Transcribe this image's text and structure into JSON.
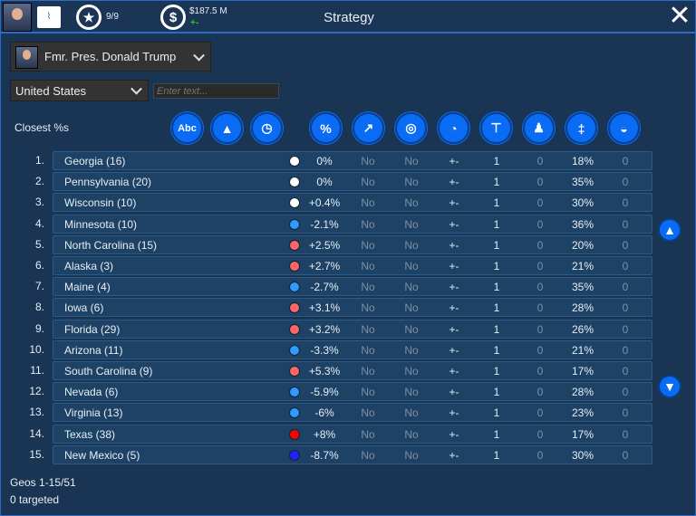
{
  "header": {
    "title": "Strategy",
    "endorsements": "9/9",
    "funds": "$187.5 M",
    "funds_change": "+-"
  },
  "candidate_select": {
    "value": "Fmr. Pres. Donald Trump"
  },
  "region_select": {
    "value": "United States"
  },
  "search": {
    "placeholder": "Enter text..."
  },
  "sort_label": "Closest %s",
  "column_icons": [
    "abc-icon",
    "gold-bars-icon",
    "clock-icon",
    "percent-icon",
    "trend-chart-icon",
    "target-icon",
    "speedometer-icon",
    "org-chart-icon",
    "people-icon",
    "signpost-icon",
    "satellite-dish-icon"
  ],
  "rows": [
    {
      "rank": "1.",
      "name": "Georgia (16)",
      "dot": "#ffffff",
      "margin": "0%",
      "c1": "No",
      "c2": "No",
      "c3": "+-",
      "c4": "1",
      "c5": "0",
      "c6": "18%",
      "c7": "0"
    },
    {
      "rank": "2.",
      "name": "Pennsylvania (20)",
      "dot": "#ffffff",
      "margin": "0%",
      "c1": "No",
      "c2": "No",
      "c3": "+-",
      "c4": "1",
      "c5": "0",
      "c6": "35%",
      "c7": "0"
    },
    {
      "rank": "3.",
      "name": "Wisconsin (10)",
      "dot": "#ffffff",
      "margin": "+0.4%",
      "c1": "No",
      "c2": "No",
      "c3": "+-",
      "c4": "1",
      "c5": "0",
      "c6": "30%",
      "c7": "0"
    },
    {
      "rank": "4.",
      "name": "Minnesota (10)",
      "dot": "#3399ff",
      "margin": "-2.1%",
      "c1": "No",
      "c2": "No",
      "c3": "+-",
      "c4": "1",
      "c5": "0",
      "c6": "36%",
      "c7": "0"
    },
    {
      "rank": "5.",
      "name": "North Carolina (15)",
      "dot": "#ff6666",
      "margin": "+2.5%",
      "c1": "No",
      "c2": "No",
      "c3": "+-",
      "c4": "1",
      "c5": "0",
      "c6": "20%",
      "c7": "0"
    },
    {
      "rank": "6.",
      "name": "Alaska (3)",
      "dot": "#ff6666",
      "margin": "+2.7%",
      "c1": "No",
      "c2": "No",
      "c3": "+-",
      "c4": "1",
      "c5": "0",
      "c6": "21%",
      "c7": "0"
    },
    {
      "rank": "7.",
      "name": "Maine (4)",
      "dot": "#3399ff",
      "margin": "-2.7%",
      "c1": "No",
      "c2": "No",
      "c3": "+-",
      "c4": "1",
      "c5": "0",
      "c6": "35%",
      "c7": "0"
    },
    {
      "rank": "8.",
      "name": "Iowa (6)",
      "dot": "#ff6666",
      "margin": "+3.1%",
      "c1": "No",
      "c2": "No",
      "c3": "+-",
      "c4": "1",
      "c5": "0",
      "c6": "28%",
      "c7": "0"
    },
    {
      "rank": "9.",
      "name": "Florida (29)",
      "dot": "#ff6666",
      "margin": "+3.2%",
      "c1": "No",
      "c2": "No",
      "c3": "+-",
      "c4": "1",
      "c5": "0",
      "c6": "26%",
      "c7": "0"
    },
    {
      "rank": "10.",
      "name": "Arizona (11)",
      "dot": "#3399ff",
      "margin": "-3.3%",
      "c1": "No",
      "c2": "No",
      "c3": "+-",
      "c4": "1",
      "c5": "0",
      "c6": "21%",
      "c7": "0"
    },
    {
      "rank": "11.",
      "name": "South Carolina (9)",
      "dot": "#ff6666",
      "margin": "+5.3%",
      "c1": "No",
      "c2": "No",
      "c3": "+-",
      "c4": "1",
      "c5": "0",
      "c6": "17%",
      "c7": "0"
    },
    {
      "rank": "12.",
      "name": "Nevada (6)",
      "dot": "#3399ff",
      "margin": "-5.9%",
      "c1": "No",
      "c2": "No",
      "c3": "+-",
      "c4": "1",
      "c5": "0",
      "c6": "28%",
      "c7": "0"
    },
    {
      "rank": "13.",
      "name": "Virginia (13)",
      "dot": "#3399ff",
      "margin": "-6%",
      "c1": "No",
      "c2": "No",
      "c3": "+-",
      "c4": "1",
      "c5": "0",
      "c6": "23%",
      "c7": "0"
    },
    {
      "rank": "14.",
      "name": "Texas (38)",
      "dot": "#ff0000",
      "margin": "+8%",
      "c1": "No",
      "c2": "No",
      "c3": "+-",
      "c4": "1",
      "c5": "0",
      "c6": "17%",
      "c7": "0"
    },
    {
      "rank": "15.",
      "name": "New Mexico (5)",
      "dot": "#2222ff",
      "margin": "-8.7%",
      "c1": "No",
      "c2": "No",
      "c3": "+-",
      "c4": "1",
      "c5": "0",
      "c6": "30%",
      "c7": "0"
    }
  ],
  "footer": {
    "geos": "Geos 1-15/51",
    "targeted": "0 targeted"
  }
}
